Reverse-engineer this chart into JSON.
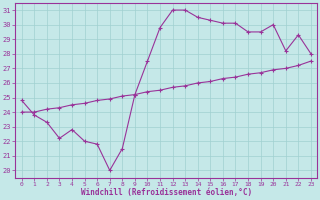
{
  "x_values": [
    0,
    1,
    2,
    3,
    4,
    5,
    6,
    7,
    8,
    9,
    10,
    11,
    12,
    13,
    14,
    15,
    16,
    17,
    18,
    19,
    20,
    21,
    22,
    23
  ],
  "line1_y": [
    24.8,
    23.8,
    23.3,
    22.2,
    22.8,
    22.0,
    21.8,
    20.0,
    21.5,
    25.2,
    27.5,
    29.8,
    31.0,
    31.0,
    30.5,
    30.3,
    30.1,
    30.1,
    29.5,
    29.5,
    30.0,
    28.2,
    29.3,
    28.0
  ],
  "line2_y": [
    24.0,
    24.0,
    24.2,
    24.3,
    24.5,
    24.6,
    24.8,
    24.9,
    25.1,
    25.2,
    25.4,
    25.5,
    25.7,
    25.8,
    26.0,
    26.1,
    26.3,
    26.4,
    26.6,
    26.7,
    26.9,
    27.0,
    27.2,
    27.5
  ],
  "line_color": "#993399",
  "bg_color": "#c5e8e8",
  "grid_color": "#a0d0d0",
  "axis_color": "#993399",
  "xlabel": "Windchill (Refroidissement éolien,°C)",
  "xlim": [
    -0.5,
    23.5
  ],
  "ylim": [
    19.5,
    31.5
  ],
  "yticks": [
    20,
    21,
    22,
    23,
    24,
    25,
    26,
    27,
    28,
    29,
    30,
    31
  ],
  "xticks": [
    0,
    1,
    2,
    3,
    4,
    5,
    6,
    7,
    8,
    9,
    10,
    11,
    12,
    13,
    14,
    15,
    16,
    17,
    18,
    19,
    20,
    21,
    22,
    23
  ],
  "marker_size": 3,
  "line_width": 0.8
}
